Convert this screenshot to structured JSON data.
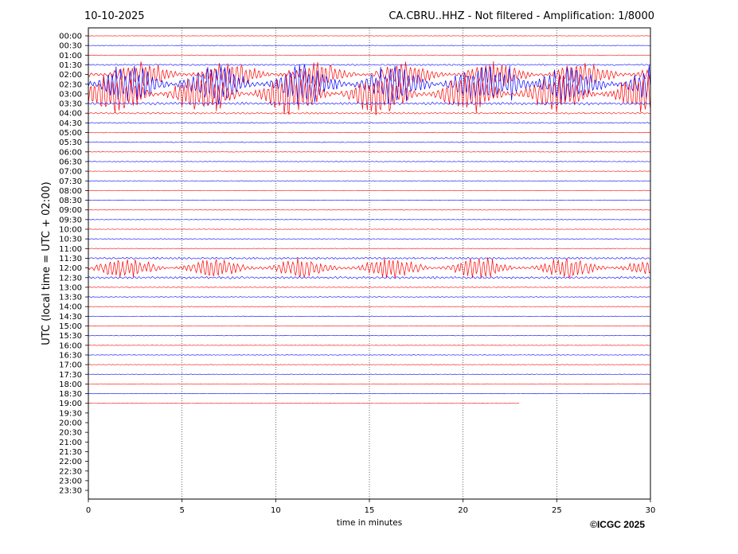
{
  "chart_data": {
    "type": "line",
    "title_left": "10-10-2025",
    "title_right": "CA.CBRU..HHZ - Not filtered - Amplification: 1/8000",
    "ylabel": "UTC (local time = UTC + 02:00)",
    "xlabel": "time in minutes",
    "copyright": "©ICGC 2025",
    "xlim": [
      0,
      30
    ],
    "x_ticks": [
      "0",
      "5",
      "10",
      "15",
      "20",
      "25",
      "30"
    ],
    "grid": "vertical dotted lines at 5-minute intervals",
    "row_labels": [
      "00:00",
      "00:30",
      "01:00",
      "01:30",
      "02:00",
      "02:30",
      "03:00",
      "03:30",
      "04:00",
      "04:30",
      "05:00",
      "05:30",
      "06:00",
      "06:30",
      "07:00",
      "07:30",
      "08:00",
      "08:30",
      "09:00",
      "09:30",
      "10:00",
      "10:30",
      "11:00",
      "11:30",
      "12:00",
      "12:30",
      "13:00",
      "13:30",
      "14:00",
      "14:30",
      "15:00",
      "15:30",
      "16:00",
      "16:30",
      "17:00",
      "17:30",
      "18:00",
      "18:30",
      "19:00",
      "19:30",
      "20:00",
      "20:30",
      "21:00",
      "21:30",
      "22:00",
      "22:30",
      "23:00",
      "23:30"
    ],
    "trace_colors": [
      "#ff0000",
      "#0000ff"
    ],
    "traces_recorded": 39,
    "last_trace_end_minute": 23,
    "trace_activity": [
      0.15,
      0.15,
      0.15,
      0.5,
      1.6,
      2.6,
      2.6,
      0.9,
      0.6,
      0.4,
      0.3,
      0.3,
      0.2,
      0.2,
      0.2,
      0.2,
      0.2,
      0.2,
      0.2,
      0.2,
      0.2,
      0.2,
      0.25,
      0.7,
      1.3,
      0.8,
      0.3,
      0.25,
      0.2,
      0.2,
      0.2,
      0.2,
      0.2,
      0.2,
      0.2,
      0.2,
      0.2,
      0.2,
      0.15
    ]
  }
}
